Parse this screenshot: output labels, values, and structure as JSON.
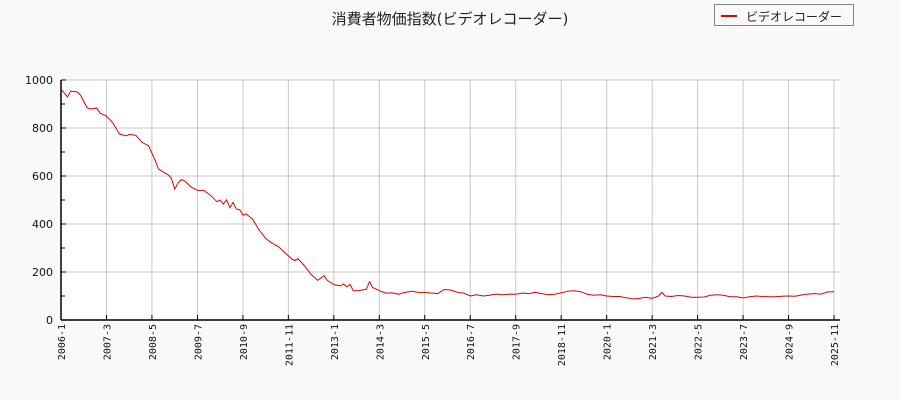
{
  "chart_data": {
    "type": "line",
    "title": "消費者物価指数(ビデオレコーダー)",
    "xlabel": "",
    "ylabel": "",
    "ylim": [
      0,
      1000
    ],
    "yticks": [
      0,
      200,
      400,
      600,
      800,
      1000
    ],
    "grid": true,
    "legend_position": "top-right",
    "x_start": "2006-1",
    "x_end": "2026-0",
    "xtick_labels": [
      "2006-1",
      "2007-3",
      "2008-5",
      "2009-7",
      "2010-9",
      "2011-11",
      "2013-1",
      "2014-3",
      "2015-5",
      "2016-7",
      "2017-9",
      "2018-11",
      "2020-1",
      "2021-3",
      "2022-5",
      "2023-7",
      "2024-9",
      "2025-11"
    ],
    "series": [
      {
        "name": "ビデオレコーダー",
        "color": "#e00000",
        "anchors": [
          [
            0,
            962
          ],
          [
            2,
            929
          ],
          [
            3,
            954
          ],
          [
            5,
            950
          ],
          [
            6,
            937
          ],
          [
            8,
            885
          ],
          [
            9,
            879
          ],
          [
            11,
            883
          ],
          [
            12,
            862
          ],
          [
            14,
            850
          ],
          [
            16,
            820
          ],
          [
            18,
            775
          ],
          [
            20,
            767
          ],
          [
            21,
            773
          ],
          [
            23,
            770
          ],
          [
            25,
            740
          ],
          [
            27,
            725
          ],
          [
            29,
            665
          ],
          [
            30,
            630
          ],
          [
            32,
            612
          ],
          [
            33,
            605
          ],
          [
            34,
            590
          ],
          [
            35,
            545
          ],
          [
            36,
            570
          ],
          [
            37,
            585
          ],
          [
            38,
            580
          ],
          [
            40,
            555
          ],
          [
            42,
            540
          ],
          [
            44,
            540
          ],
          [
            46,
            520
          ],
          [
            48,
            493
          ],
          [
            49,
            500
          ],
          [
            50,
            483
          ],
          [
            51,
            500
          ],
          [
            52,
            468
          ],
          [
            53,
            490
          ],
          [
            54,
            462
          ],
          [
            55,
            460
          ],
          [
            56,
            437
          ],
          [
            57,
            442
          ],
          [
            59,
            420
          ],
          [
            61,
            375
          ],
          [
            63,
            340
          ],
          [
            65,
            320
          ],
          [
            67,
            305
          ],
          [
            69,
            280
          ],
          [
            71,
            255
          ],
          [
            72,
            248
          ],
          [
            73,
            255
          ],
          [
            75,
            225
          ],
          [
            77,
            190
          ],
          [
            79,
            165
          ],
          [
            81,
            185
          ],
          [
            82,
            165
          ],
          [
            84,
            148
          ],
          [
            86,
            142
          ],
          [
            87,
            150
          ],
          [
            88,
            138
          ],
          [
            89,
            148
          ],
          [
            90,
            122
          ],
          [
            92,
            123
          ],
          [
            94,
            128
          ],
          [
            95,
            160
          ],
          [
            96,
            135
          ],
          [
            98,
            122
          ],
          [
            100,
            112
          ],
          [
            102,
            113
          ],
          [
            104,
            107
          ],
          [
            105,
            112
          ],
          [
            107,
            118
          ],
          [
            108,
            120
          ],
          [
            110,
            115
          ],
          [
            112,
            115
          ],
          [
            114,
            112
          ],
          [
            116,
            110
          ],
          [
            118,
            127
          ],
          [
            120,
            125
          ],
          [
            122,
            115
          ],
          [
            124,
            112
          ],
          [
            126,
            100
          ],
          [
            128,
            105
          ],
          [
            130,
            100
          ],
          [
            132,
            103
          ],
          [
            134,
            108
          ],
          [
            136,
            105
          ],
          [
            138,
            108
          ],
          [
            140,
            107
          ],
          [
            142,
            112
          ],
          [
            144,
            110
          ],
          [
            146,
            115
          ],
          [
            148,
            110
          ],
          [
            150,
            105
          ],
          [
            152,
            107
          ],
          [
            154,
            113
          ],
          [
            156,
            120
          ],
          [
            158,
            122
          ],
          [
            160,
            118
          ],
          [
            162,
            107
          ],
          [
            164,
            103
          ],
          [
            166,
            105
          ],
          [
            168,
            100
          ],
          [
            170,
            98
          ],
          [
            172,
            98
          ],
          [
            174,
            93
          ],
          [
            176,
            88
          ],
          [
            178,
            90
          ],
          [
            180,
            95
          ],
          [
            182,
            90
          ],
          [
            184,
            100
          ],
          [
            185,
            115
          ],
          [
            186,
            100
          ],
          [
            188,
            98
          ],
          [
            190,
            102
          ],
          [
            192,
            100
          ],
          [
            194,
            95
          ],
          [
            196,
            95
          ],
          [
            198,
            96
          ],
          [
            200,
            103
          ],
          [
            202,
            105
          ],
          [
            204,
            103
          ],
          [
            206,
            97
          ],
          [
            208,
            97
          ],
          [
            210,
            92
          ],
          [
            212,
            97
          ],
          [
            214,
            100
          ],
          [
            216,
            98
          ],
          [
            218,
            97
          ],
          [
            220,
            97
          ],
          [
            222,
            99
          ],
          [
            224,
            100
          ],
          [
            226,
            99
          ],
          [
            228,
            104
          ],
          [
            230,
            108
          ],
          [
            232,
            110
          ],
          [
            234,
            108
          ],
          [
            236,
            117
          ],
          [
            238,
            118
          ]
        ]
      }
    ]
  },
  "legend": {
    "label": "ビデオレコーダー"
  }
}
